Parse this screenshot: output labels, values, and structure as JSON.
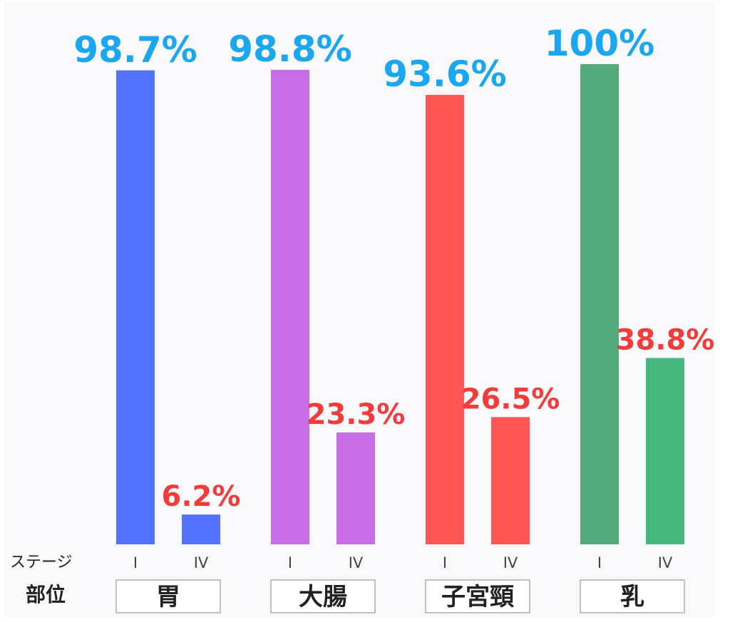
{
  "chart_data": {
    "type": "bar",
    "stage_row_label": "ステージ",
    "site_row_label": "部位",
    "stages": [
      "I",
      "IV"
    ],
    "ylim": [
      0,
      100
    ],
    "groups": [
      {
        "site": "胃",
        "values": [
          98.7,
          6.2
        ],
        "labels": [
          "98.7%",
          "6.2%"
        ],
        "colors": [
          "#5272ff",
          "#5272ff"
        ]
      },
      {
        "site": "大腸",
        "values": [
          98.8,
          23.3
        ],
        "labels": [
          "98.8%",
          "23.3%"
        ],
        "colors": [
          "#c86de6",
          "#c86de6"
        ]
      },
      {
        "site": "子宮頸",
        "values": [
          93.6,
          26.5
        ],
        "labels": [
          "93.6%",
          "26.5%"
        ],
        "colors": [
          "#ff5555",
          "#ff5555"
        ]
      },
      {
        "site": "乳",
        "values": [
          100,
          38.8
        ],
        "labels": [
          "100%",
          "38.8%"
        ],
        "colors": [
          "#55aa7d",
          "#47b77f"
        ]
      }
    ],
    "label_colors": {
      "stage_I": "#1aa7f0",
      "stage_IV": "#f23c3c"
    }
  }
}
